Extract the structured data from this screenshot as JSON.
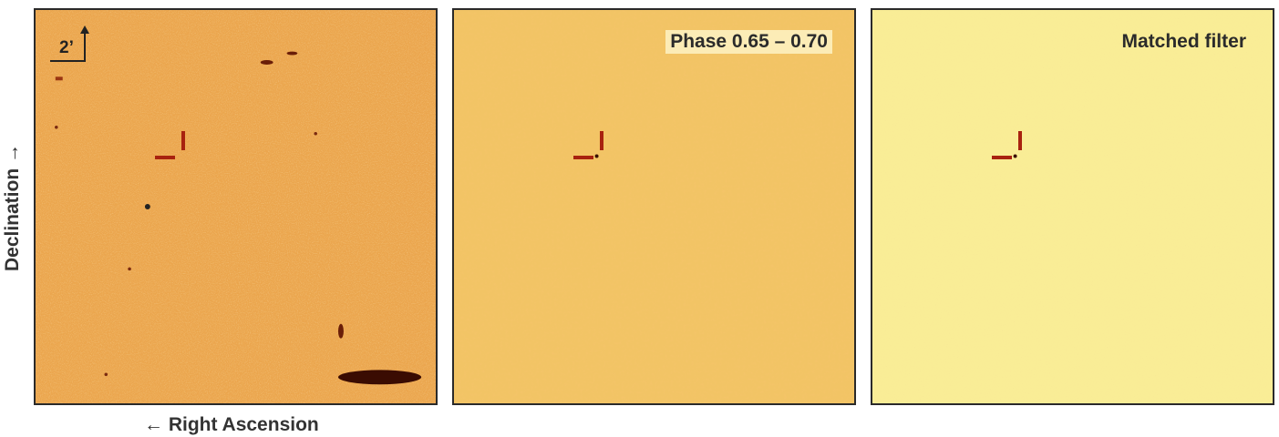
{
  "axes": {
    "ylabel": "Declination →",
    "xlabel": "← Right Ascension"
  },
  "panels": [
    {
      "id": "raw",
      "label": "",
      "scale_bar": "2’"
    },
    {
      "id": "phase",
      "label": "Phase 0.65 – 0.70"
    },
    {
      "id": "matched",
      "label": "Matched filter"
    }
  ],
  "colors": {
    "panel1_bg": "#eba64e",
    "panel2_bg": "#f2c465",
    "panel3_bg": "#f9ed96",
    "marker": "#a8220f",
    "frame": "#2a2a2a"
  }
}
